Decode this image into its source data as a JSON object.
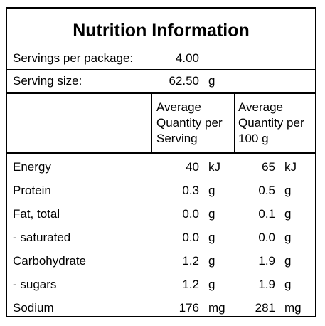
{
  "title": "Nutrition Information",
  "servings": {
    "label": "Servings per package:",
    "value": "4.00"
  },
  "serving_size": {
    "label": "Serving size:",
    "value": "62.50",
    "unit": "g"
  },
  "columns": {
    "per_serving": [
      "Average",
      "Quantity per",
      "Serving"
    ],
    "per_100g": [
      "Average",
      "Quantity per",
      "100 g"
    ]
  },
  "rows": [
    {
      "name": "Energy",
      "serving": "40",
      "serving_unit": "kJ",
      "per100": "65",
      "per100_unit": "kJ"
    },
    {
      "name": "Protein",
      "serving": "0.3",
      "serving_unit": "g",
      "per100": "0.5",
      "per100_unit": "g"
    },
    {
      "name": "Fat, total",
      "serving": "0.0",
      "serving_unit": "g",
      "per100": "0.1",
      "per100_unit": "g"
    },
    {
      "name": "- saturated",
      "serving": "0.0",
      "serving_unit": "g",
      "per100": "0.0",
      "per100_unit": "g"
    },
    {
      "name": "Carbohydrate",
      "serving": "1.2",
      "serving_unit": "g",
      "per100": "1.9",
      "per100_unit": "g"
    },
    {
      "name": "- sugars",
      "serving": "1.2",
      "serving_unit": "g",
      "per100": "1.9",
      "per100_unit": "g"
    },
    {
      "name": "Sodium",
      "serving": "176",
      "serving_unit": "mg",
      "per100": "281",
      "per100_unit": "mg"
    }
  ]
}
